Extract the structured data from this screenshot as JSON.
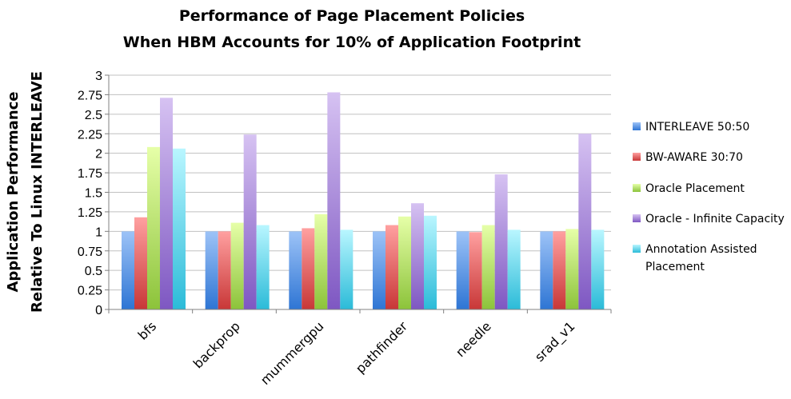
{
  "chart_data": {
    "type": "bar",
    "title": "Performance of Page Placement Policies",
    "subtitle": "When HBM Accounts for 10% of Application Footprint",
    "ylabel_line1": "Application Performance",
    "ylabel_line2": "Relative To Linux INTERLEAVE",
    "xlabel": "",
    "ylim": [
      0,
      3
    ],
    "yticks": [
      "0",
      "0.25",
      "0.5",
      "0.75",
      "1",
      "1.25",
      "1.5",
      "1.75",
      "2",
      "2.25",
      "2.5",
      "2.75",
      "3"
    ],
    "grid": true,
    "legend_position": "right",
    "categories": [
      "bfs",
      "backprop",
      "mummergpu",
      "pathfinder",
      "needle",
      "srad_v1"
    ],
    "series": [
      {
        "name": "INTERLEAVE 50:50",
        "color_top": "#9dc3f7",
        "color_bottom": "#2e75d4",
        "values": [
          1,
          1,
          1,
          1,
          1,
          1
        ]
      },
      {
        "name": "BW-AWARE 30:70",
        "color_top": "#ffa0a0",
        "color_bottom": "#c83737",
        "values": [
          1.18,
          1.0,
          1.04,
          1.08,
          0.99,
          1.0
        ]
      },
      {
        "name": "Oracle Placement",
        "color_top": "#e6ffa8",
        "color_bottom": "#8cc33a",
        "values": [
          2.08,
          1.11,
          1.22,
          1.19,
          1.08,
          1.03
        ]
      },
      {
        "name": "Oracle - Infinite Capacity",
        "color_top": "#d6c2f2",
        "color_bottom": "#7e57c2",
        "values": [
          2.71,
          2.24,
          2.78,
          1.36,
          1.73,
          2.25
        ]
      },
      {
        "name": "Annotation Assisted Placement",
        "name_line1": "Annotation Assisted",
        "name_line2": "Placement",
        "color_top": "#b9f6ff",
        "color_bottom": "#2bbbd8",
        "values": [
          2.06,
          1.08,
          1.02,
          1.2,
          1.02,
          1.02
        ]
      }
    ]
  }
}
